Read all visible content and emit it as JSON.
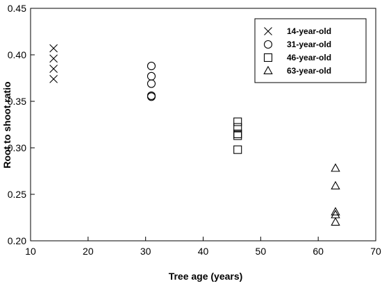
{
  "chart_data": {
    "type": "scatter",
    "title": "",
    "xlabel": "Tree age (years)",
    "ylabel": "Root to shoot ratio",
    "xlim": [
      10,
      70
    ],
    "ylim": [
      0.2,
      0.45
    ],
    "xticks": [
      10,
      20,
      30,
      40,
      50,
      60,
      70
    ],
    "yticks": [
      0.2,
      0.25,
      0.3,
      0.35,
      0.4,
      0.45
    ],
    "xtick_labels": [
      "10",
      "20",
      "30",
      "40",
      "50",
      "60",
      "70"
    ],
    "ytick_labels": [
      "0.20",
      "0.25",
      "0.30",
      "0.35",
      "0.40",
      "0.45"
    ],
    "grid": false,
    "legend_position": "top-right",
    "series": [
      {
        "name": "14-year-old",
        "marker": "x",
        "points": [
          {
            "x": 14,
            "y": 0.407
          },
          {
            "x": 14,
            "y": 0.396
          },
          {
            "x": 14,
            "y": 0.385
          },
          {
            "x": 14,
            "y": 0.374
          }
        ]
      },
      {
        "name": "31-year-old",
        "marker": "circle",
        "points": [
          {
            "x": 31,
            "y": 0.388
          },
          {
            "x": 31,
            "y": 0.377
          },
          {
            "x": 31,
            "y": 0.369
          },
          {
            "x": 31,
            "y": 0.356
          },
          {
            "x": 31,
            "y": 0.355
          }
        ]
      },
      {
        "name": "46-year-old",
        "marker": "square",
        "points": [
          {
            "x": 46,
            "y": 0.328
          },
          {
            "x": 46,
            "y": 0.322
          },
          {
            "x": 46,
            "y": 0.315
          },
          {
            "x": 46,
            "y": 0.313
          },
          {
            "x": 46,
            "y": 0.298
          }
        ]
      },
      {
        "name": "63-year-old",
        "marker": "triangle",
        "points": [
          {
            "x": 63,
            "y": 0.278
          },
          {
            "x": 63,
            "y": 0.259
          },
          {
            "x": 63,
            "y": 0.231
          },
          {
            "x": 63,
            "y": 0.228
          },
          {
            "x": 63,
            "y": 0.22
          }
        ]
      }
    ]
  }
}
